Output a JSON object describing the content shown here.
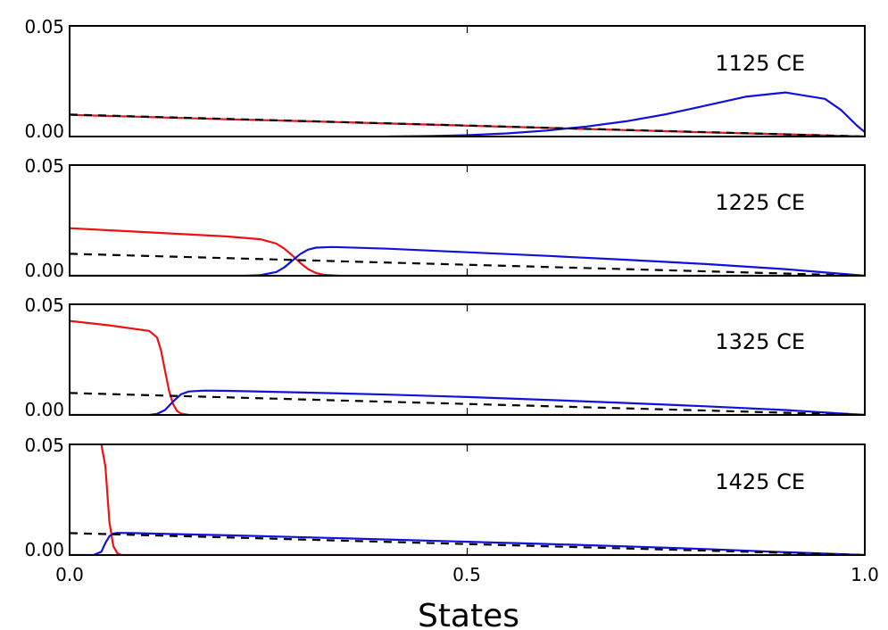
{
  "chart_data": {
    "type": "line",
    "xlabel": "States",
    "xlim": [
      0,
      1
    ],
    "ylim": [
      0,
      0.05
    ],
    "x_ticks": [
      "0.0",
      "0.5",
      "1.0"
    ],
    "y_ticks": [
      "0.00",
      "0.05"
    ],
    "series_colors": {
      "red": "#ee1111",
      "blue": "#1111dd",
      "dashed": "#000000"
    },
    "panels": [
      {
        "label": "1125 CE",
        "red": {
          "x": [
            0,
            0.1,
            0.2,
            0.3,
            0.4,
            0.5,
            0.6,
            0.7,
            0.8,
            0.9,
            1.0
          ],
          "y": [
            0.0098,
            0.0088,
            0.0078,
            0.0069,
            0.0059,
            0.0049,
            0.0039,
            0.0029,
            0.0019,
            0.001,
            0.0
          ]
        },
        "blue": {
          "x": [
            0.4,
            0.45,
            0.5,
            0.55,
            0.6,
            0.65,
            0.7,
            0.75,
            0.8,
            0.85,
            0.9,
            0.95,
            0.97,
            0.99,
            1.0
          ],
          "y": [
            0.0,
            0.0002,
            0.0006,
            0.0014,
            0.0027,
            0.0045,
            0.0069,
            0.0101,
            0.014,
            0.018,
            0.0199,
            0.017,
            0.012,
            0.005,
            0.002
          ]
        },
        "dashed": {
          "x": [
            0,
            1
          ],
          "y": [
            0.0099,
            0.0
          ]
        }
      },
      {
        "label": "1225 CE",
        "red": {
          "x": [
            0,
            0.1,
            0.2,
            0.24,
            0.26,
            0.27,
            0.28,
            0.29,
            0.3,
            0.31,
            0.32,
            0.34,
            0.4,
            1.0
          ],
          "y": [
            0.0215,
            0.0196,
            0.0177,
            0.0165,
            0.0145,
            0.0122,
            0.0092,
            0.0058,
            0.003,
            0.0012,
            0.0004,
            0.0,
            0.0,
            0.0
          ]
        },
        "blue": {
          "x": [
            0,
            0.22,
            0.24,
            0.26,
            0.27,
            0.28,
            0.29,
            0.3,
            0.31,
            0.33,
            0.35,
            0.4,
            0.5,
            0.6,
            0.7,
            0.8,
            0.9,
            1.0
          ],
          "y": [
            0,
            0,
            0.0003,
            0.0017,
            0.0038,
            0.0068,
            0.0098,
            0.0118,
            0.0127,
            0.013,
            0.0128,
            0.0122,
            0.0106,
            0.009,
            0.0072,
            0.0053,
            0.003,
            0.0
          ]
        },
        "dashed": {
          "x": [
            0,
            1
          ],
          "y": [
            0.0099,
            0.0
          ]
        }
      },
      {
        "label": "1325 CE",
        "red": {
          "x": [
            0,
            0.05,
            0.1,
            0.11,
            0.115,
            0.12,
            0.125,
            0.13,
            0.135,
            0.14,
            0.15,
            0.16,
            1.0
          ],
          "y": [
            0.0425,
            0.0405,
            0.038,
            0.035,
            0.029,
            0.02,
            0.011,
            0.005,
            0.0018,
            0.0006,
            0.0,
            0.0,
            0.0
          ]
        },
        "blue": {
          "x": [
            0,
            0.1,
            0.11,
            0.12,
            0.13,
            0.14,
            0.15,
            0.17,
            0.2,
            0.3,
            0.4,
            0.5,
            0.6,
            0.7,
            0.8,
            0.9,
            1.0
          ],
          "y": [
            0,
            0,
            0.0005,
            0.0022,
            0.006,
            0.0093,
            0.0106,
            0.011,
            0.0109,
            0.0101,
            0.0092,
            0.0081,
            0.0068,
            0.0054,
            0.0039,
            0.0022,
            0.0
          ]
        },
        "dashed": {
          "x": [
            0,
            1
          ],
          "y": [
            0.0099,
            0.0
          ]
        }
      },
      {
        "label": "1425 CE",
        "red": {
          "x": [
            0.04,
            0.045,
            0.05,
            0.055,
            0.06,
            0.065,
            0.07,
            1.0
          ],
          "y": [
            0.05,
            0.04,
            0.015,
            0.004,
            0.0008,
            0.0,
            0.0,
            0.0
          ]
        },
        "blue": {
          "x": [
            0,
            0.03,
            0.04,
            0.045,
            0.05,
            0.055,
            0.06,
            0.08,
            0.1,
            0.2,
            0.3,
            0.4,
            0.5,
            0.6,
            0.7,
            0.8,
            0.9,
            1.0
          ],
          "y": [
            0,
            0,
            0.0015,
            0.0055,
            0.0085,
            0.0097,
            0.01,
            0.0099,
            0.0097,
            0.0089,
            0.008,
            0.007,
            0.006,
            0.005,
            0.0039,
            0.0027,
            0.0013,
            0.0
          ]
        },
        "dashed": {
          "x": [
            0,
            1
          ],
          "y": [
            0.0099,
            0.0
          ]
        }
      }
    ]
  }
}
